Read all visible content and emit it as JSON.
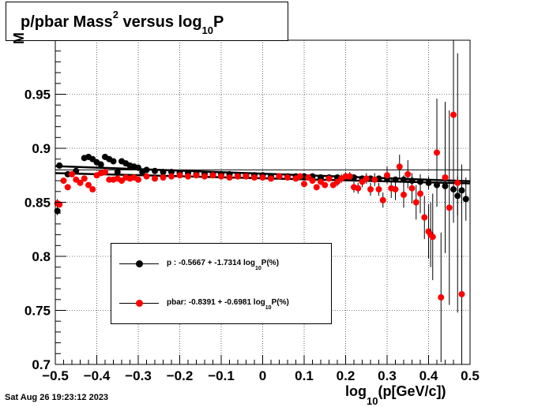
{
  "title": {
    "main": "p/pbar Mass",
    "sup": "2",
    "mid": " versus log",
    "sub": "10",
    "end": "P"
  },
  "timestamp": "Sat Aug 26 19:23:12 2023",
  "axes": {
    "xlabel": {
      "pre": "log",
      "sub": "10",
      "post": "(p[GeV/c])"
    },
    "ylabel_fragment": "M"
  },
  "colors": {
    "p": "#000000",
    "pbar": "#ff0000",
    "fit": "#000000"
  },
  "legend": [
    {
      "series": "p",
      "pre": "p  : -0.5667 + -1.7314 log",
      "sub": "10",
      "post": "P(%)"
    },
    {
      "series": "pbar",
      "pre": "pbar: -0.8391 + -0.6981 log",
      "sub": "10",
      "post": "P(%)"
    }
  ],
  "chart_data": {
    "type": "scatter",
    "xlim": [
      -0.5,
      0.5
    ],
    "ylim": [
      0.7,
      1.0
    ],
    "xticks": [
      -0.5,
      -0.4,
      -0.3,
      -0.2,
      -0.1,
      0,
      0.1,
      0.2,
      0.3,
      0.4,
      0.5
    ],
    "xtick_labels": [
      "−0.5",
      "−0.4",
      "−0.3",
      "−0.2",
      "−0.1",
      "0",
      "0.1",
      "0.2",
      "0.3",
      "0.4",
      "0.5"
    ],
    "yticks": [
      0.7,
      0.75,
      0.8,
      0.85,
      0.9,
      0.95
    ],
    "ytick_labels": [
      "0.7",
      "0.75",
      "0.8",
      "0.85",
      "0.9",
      "0.95"
    ],
    "grid": true,
    "legend_position": "lower-left",
    "fits": [
      {
        "name": "p fit",
        "x": [
          -0.5,
          0.5
        ],
        "y": [
          0.8835,
          0.8695
        ]
      },
      {
        "name": "pbar fit",
        "x": [
          -0.5,
          0.5
        ],
        "y": [
          0.877,
          0.8675
        ]
      },
      {
        "name": "reference",
        "x": [
          -0.5,
          0.5
        ],
        "y": [
          0.88,
          0.88
        ]
      }
    ],
    "series": [
      {
        "name": "p",
        "x": [
          -0.495,
          -0.49,
          -0.47,
          -0.45,
          -0.43,
          -0.42,
          -0.41,
          -0.4,
          -0.39,
          -0.38,
          -0.37,
          -0.36,
          -0.35,
          -0.34,
          -0.33,
          -0.32,
          -0.31,
          -0.3,
          -0.29,
          -0.28,
          -0.26,
          -0.24,
          -0.22,
          -0.2,
          -0.18,
          -0.16,
          -0.14,
          -0.12,
          -0.1,
          -0.08,
          -0.06,
          -0.04,
          -0.02,
          0,
          0.02,
          0.04,
          0.06,
          0.08,
          0.1,
          0.12,
          0.14,
          0.16,
          0.18,
          0.2,
          0.22,
          0.24,
          0.26,
          0.28,
          0.3,
          0.32,
          0.34,
          0.36,
          0.38,
          0.4,
          0.42,
          0.44,
          0.46,
          0.47,
          0.48,
          0.49
        ],
        "y": [
          0.842,
          0.884,
          0.876,
          0.879,
          0.891,
          0.892,
          0.89,
          0.887,
          0.885,
          0.892,
          0.89,
          0.888,
          0.878,
          0.888,
          0.886,
          0.884,
          0.883,
          0.882,
          0.878,
          0.88,
          0.879,
          0.878,
          0.878,
          0.877,
          0.877,
          0.876,
          0.876,
          0.876,
          0.876,
          0.876,
          0.875,
          0.875,
          0.875,
          0.875,
          0.874,
          0.874,
          0.874,
          0.874,
          0.874,
          0.874,
          0.873,
          0.873,
          0.873,
          0.873,
          0.873,
          0.872,
          0.872,
          0.872,
          0.872,
          0.871,
          0.871,
          0.87,
          0.869,
          0.868,
          0.866,
          0.865,
          0.862,
          0.856,
          0.861,
          0.853
        ],
        "err": [
          0.004,
          0.003,
          0.003,
          0.003,
          0.003,
          0.003,
          0.003,
          0.003,
          0.003,
          0.003,
          0.003,
          0.003,
          0.003,
          0.003,
          0.003,
          0.003,
          0.003,
          0.002,
          0.002,
          0.002,
          0.002,
          0.002,
          0.002,
          0.002,
          0.002,
          0.002,
          0.002,
          0.002,
          0.002,
          0.002,
          0.002,
          0.002,
          0.002,
          0.002,
          0.002,
          0.002,
          0.002,
          0.002,
          0.002,
          0.002,
          0.002,
          0.002,
          0.002,
          0.002,
          0.002,
          0.003,
          0.003,
          0.003,
          0.003,
          0.003,
          0.004,
          0.004,
          0.005,
          0.006,
          0.008,
          0.01,
          0.014,
          0.018,
          0.02,
          0.02
        ]
      },
      {
        "name": "pbar",
        "x": [
          -0.495,
          -0.49,
          -0.48,
          -0.47,
          -0.46,
          -0.45,
          -0.44,
          -0.43,
          -0.42,
          -0.41,
          -0.4,
          -0.39,
          -0.38,
          -0.37,
          -0.36,
          -0.35,
          -0.34,
          -0.33,
          -0.32,
          -0.31,
          -0.3,
          -0.28,
          -0.26,
          -0.24,
          -0.22,
          -0.2,
          -0.18,
          -0.16,
          -0.14,
          -0.12,
          -0.1,
          -0.08,
          -0.06,
          -0.04,
          -0.02,
          0,
          0.02,
          0.04,
          0.06,
          0.08,
          0.09,
          0.1,
          0.11,
          0.12,
          0.13,
          0.14,
          0.15,
          0.16,
          0.17,
          0.18,
          0.19,
          0.2,
          0.21,
          0.22,
          0.23,
          0.24,
          0.25,
          0.26,
          0.27,
          0.28,
          0.29,
          0.3,
          0.31,
          0.32,
          0.33,
          0.34,
          0.35,
          0.36,
          0.37,
          0.38,
          0.39,
          0.4,
          0.405,
          0.41,
          0.42,
          0.43,
          0.44,
          0.45,
          0.46,
          0.47,
          0.48
        ],
        "y": [
          0.849,
          0.848,
          0.87,
          0.864,
          0.876,
          0.871,
          0.868,
          0.872,
          0.866,
          0.862,
          0.875,
          0.877,
          0.878,
          0.871,
          0.871,
          0.872,
          0.87,
          0.873,
          0.872,
          0.873,
          0.871,
          0.874,
          0.872,
          0.873,
          0.874,
          0.875,
          0.874,
          0.875,
          0.874,
          0.875,
          0.874,
          0.873,
          0.874,
          0.874,
          0.873,
          0.873,
          0.872,
          0.874,
          0.873,
          0.872,
          0.874,
          0.867,
          0.873,
          0.87,
          0.864,
          0.869,
          0.866,
          0.872,
          0.866,
          0.869,
          0.872,
          0.874,
          0.874,
          0.864,
          0.863,
          0.869,
          0.872,
          0.862,
          0.871,
          0.862,
          0.852,
          0.875,
          0.863,
          0.862,
          0.883,
          0.857,
          0.876,
          0.863,
          0.85,
          0.858,
          0.836,
          0.823,
          0.82,
          0.818,
          0.896,
          0.762,
          0.873,
          0.845,
          0.931,
          0.868,
          0.765
        ],
        "err": [
          0.004,
          0.003,
          0.003,
          0.003,
          0.003,
          0.003,
          0.003,
          0.003,
          0.003,
          0.003,
          0.003,
          0.003,
          0.003,
          0.003,
          0.003,
          0.003,
          0.002,
          0.002,
          0.002,
          0.002,
          0.002,
          0.002,
          0.002,
          0.002,
          0.002,
          0.002,
          0.002,
          0.002,
          0.002,
          0.002,
          0.002,
          0.002,
          0.002,
          0.002,
          0.002,
          0.002,
          0.002,
          0.002,
          0.002,
          0.002,
          0.003,
          0.003,
          0.003,
          0.003,
          0.003,
          0.003,
          0.003,
          0.003,
          0.003,
          0.004,
          0.004,
          0.004,
          0.004,
          0.005,
          0.005,
          0.005,
          0.005,
          0.006,
          0.006,
          0.006,
          0.007,
          0.008,
          0.009,
          0.01,
          0.011,
          0.012,
          0.013,
          0.014,
          0.016,
          0.018,
          0.02,
          0.025,
          0.03,
          0.04,
          0.05,
          0.06,
          0.07,
          0.09,
          0.1,
          0.12,
          0.12
        ]
      }
    ]
  }
}
